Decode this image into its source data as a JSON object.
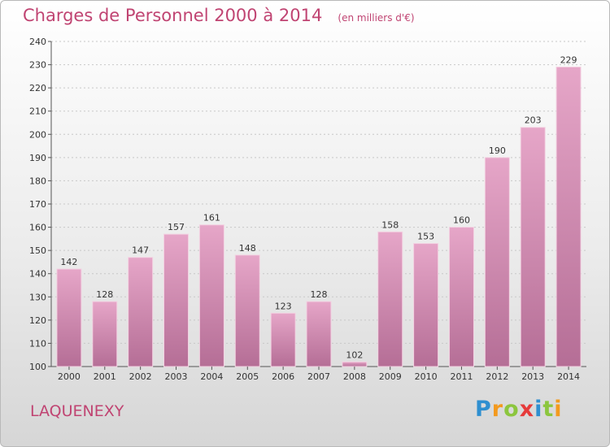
{
  "chart_data": {
    "type": "bar",
    "title": "Charges de Personnel 2000 à 2014",
    "subtitle": "(en milliers d'€)",
    "categories": [
      "2000",
      "2001",
      "2002",
      "2003",
      "2004",
      "2005",
      "2006",
      "2007",
      "2008",
      "2009",
      "2010",
      "2011",
      "2012",
      "2013",
      "2014"
    ],
    "values": [
      142,
      128,
      147,
      157,
      161,
      148,
      123,
      128,
      102,
      158,
      153,
      160,
      190,
      203,
      229
    ],
    "ylim": [
      100,
      240
    ],
    "yticks": [
      100,
      110,
      120,
      130,
      140,
      150,
      160,
      170,
      180,
      190,
      200,
      210,
      220,
      230,
      240
    ],
    "grid": true,
    "bar_color": "#d98db4"
  },
  "place_name": "LAQUENEXY",
  "logo": {
    "letters": [
      "P",
      "r",
      "o",
      "x",
      "i",
      "t",
      "i"
    ],
    "colors": [
      "#2f8fd0",
      "#f39a1e",
      "#8cc63e",
      "#e63b3b",
      "#2f8fd0",
      "#8cc63e",
      "#f39a1e"
    ]
  }
}
